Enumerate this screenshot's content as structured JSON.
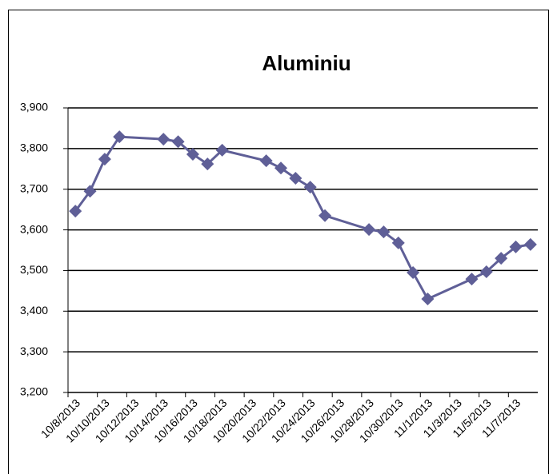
{
  "chart_data": {
    "type": "line",
    "title": "Aluminiu",
    "x": [
      "10/8/2013",
      "10/9/2013",
      "10/10/2013",
      "10/11/2013",
      "10/14/2013",
      "10/15/2013",
      "10/16/2013",
      "10/17/2013",
      "10/18/2013",
      "10/21/2013",
      "10/22/2013",
      "10/23/2013",
      "10/24/2013",
      "10/25/2013",
      "10/28/2013",
      "10/29/2013",
      "10/30/2013",
      "10/31/2013",
      "11/1/2013",
      "11/4/2013",
      "11/5/2013",
      "11/6/2013",
      "11/7/2013",
      "11/8/2013"
    ],
    "series": [
      {
        "color": "#5f5f97",
        "values": [
          3646,
          3695,
          3774,
          3829,
          3823,
          3817,
          3786,
          3762,
          3796,
          3770,
          3752,
          3727,
          3705,
          3635,
          3601,
          3595,
          3568,
          3495,
          3430,
          3479,
          3497,
          3530,
          3558,
          3564
        ]
      }
    ],
    "xlim": [
      "10/8/2013",
      "11/9/2013"
    ],
    "xticks": [
      "10/8/2013",
      "10/10/2013",
      "10/12/2013",
      "10/14/2013",
      "10/16/2013",
      "10/18/2013",
      "10/20/2013",
      "10/22/2013",
      "10/24/2013",
      "10/26/2013",
      "10/28/2013",
      "10/30/2013",
      "11/1/2013",
      "11/3/2013",
      "11/5/2013",
      "11/7/2013"
    ],
    "ylim": [
      3200,
      3900
    ],
    "yticks": [
      {
        "value": 3200,
        "label": "3,200"
      },
      {
        "value": 3300,
        "label": "3,300"
      },
      {
        "value": 3400,
        "label": "3,400"
      },
      {
        "value": 3500,
        "label": "3,500"
      },
      {
        "value": 3600,
        "label": "3,600"
      },
      {
        "value": 3700,
        "label": "3,700"
      },
      {
        "value": 3800,
        "label": "3,800"
      },
      {
        "value": 3900,
        "label": "3,900"
      }
    ],
    "grid": true
  }
}
